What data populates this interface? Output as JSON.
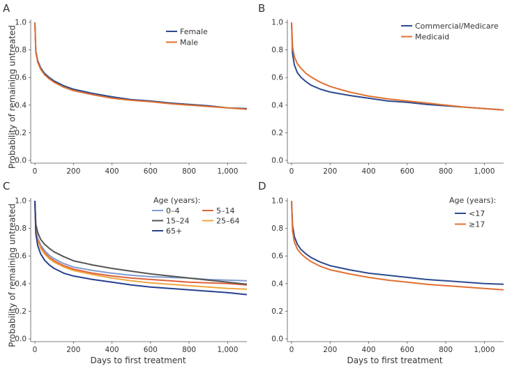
{
  "chart_data": [
    {
      "panel": "A",
      "type": "line",
      "xlabel": "",
      "ylabel": "Probability of remaining untreated",
      "xlim": [
        0,
        1100
      ],
      "ylim": [
        0,
        1.0
      ],
      "xticks": [
        0,
        200,
        400,
        600,
        800,
        1000
      ],
      "xtick_labels": [
        "0",
        "200",
        "400",
        "600",
        "800",
        "1,000"
      ],
      "yticks": [
        0,
        0.2,
        0.4,
        0.6,
        0.8,
        1.0
      ],
      "ytick_labels": [
        "0.0",
        "0.2",
        "0.4",
        "0.6",
        "0.8",
        "1.0"
      ],
      "legend_title": "",
      "legend_position": "top-right",
      "legend_columns": 1,
      "x": [
        0,
        5,
        15,
        30,
        50,
        75,
        100,
        150,
        200,
        300,
        400,
        500,
        600,
        700,
        800,
        900,
        1000,
        1100
      ],
      "series": [
        {
          "name": "Female",
          "color": "#2b4a8f",
          "values": [
            1.0,
            0.79,
            0.72,
            0.67,
            0.63,
            0.6,
            0.575,
            0.54,
            0.515,
            0.485,
            0.46,
            0.44,
            0.43,
            0.415,
            0.405,
            0.395,
            0.38,
            0.375
          ]
        },
        {
          "name": "Male",
          "color": "#e07030",
          "values": [
            1.0,
            0.78,
            0.71,
            0.66,
            0.62,
            0.59,
            0.565,
            0.53,
            0.505,
            0.475,
            0.45,
            0.435,
            0.425,
            0.41,
            0.4,
            0.39,
            0.38,
            0.37
          ]
        }
      ]
    },
    {
      "panel": "B",
      "type": "line",
      "xlabel": "",
      "ylabel": "",
      "xlim": [
        0,
        1100
      ],
      "ylim": [
        0,
        1.0
      ],
      "xticks": [
        0,
        200,
        400,
        600,
        800,
        1000
      ],
      "xtick_labels": [
        "0",
        "200",
        "400",
        "600",
        "800",
        "1,000"
      ],
      "yticks": [
        0,
        0.2,
        0.4,
        0.6,
        0.8,
        1.0
      ],
      "ytick_labels": [
        "0.0",
        "0.2",
        "0.4",
        "0.6",
        "0.8",
        "1.0"
      ],
      "legend_title": "",
      "legend_position": "top-right",
      "legend_columns": 1,
      "x": [
        0,
        5,
        15,
        30,
        50,
        75,
        100,
        150,
        200,
        300,
        400,
        500,
        600,
        700,
        800,
        900,
        1000,
        1100
      ],
      "series": [
        {
          "name": "Commercial/Medicare",
          "color": "#2b4a8f",
          "values": [
            1.0,
            0.77,
            0.69,
            0.635,
            0.6,
            0.57,
            0.545,
            0.515,
            0.495,
            0.47,
            0.45,
            0.43,
            0.42,
            0.405,
            0.395,
            0.385,
            0.375,
            0.365
          ]
        },
        {
          "name": "Medicaid",
          "color": "#e07030",
          "values": [
            1.0,
            0.82,
            0.75,
            0.7,
            0.665,
            0.63,
            0.605,
            0.565,
            0.535,
            0.495,
            0.465,
            0.445,
            0.43,
            0.415,
            0.4,
            0.385,
            0.375,
            0.365
          ]
        }
      ]
    },
    {
      "panel": "C",
      "type": "line",
      "xlabel": "Days to first treatment",
      "ylabel": "Probability of remaining untreated",
      "xlim": [
        0,
        1100
      ],
      "ylim": [
        0,
        1.0
      ],
      "xticks": [
        0,
        200,
        400,
        600,
        800,
        1000
      ],
      "xtick_labels": [
        "0",
        "200",
        "400",
        "600",
        "800",
        "1,000"
      ],
      "yticks": [
        0,
        0.2,
        0.4,
        0.6,
        0.8,
        1.0
      ],
      "ytick_labels": [
        "0.0",
        "0.2",
        "0.4",
        "0.6",
        "0.8",
        "1.0"
      ],
      "legend_title": "Age (years):",
      "legend_position": "top-right",
      "legend_columns": 2,
      "x": [
        0,
        5,
        15,
        30,
        50,
        75,
        100,
        150,
        200,
        300,
        400,
        500,
        600,
        700,
        800,
        900,
        1000,
        1100
      ],
      "series": [
        {
          "name": "0–4",
          "color": "#7f9bd1",
          "values": [
            1.0,
            0.8,
            0.73,
            0.68,
            0.64,
            0.605,
            0.58,
            0.545,
            0.52,
            0.495,
            0.475,
            0.46,
            0.45,
            0.445,
            0.44,
            0.43,
            0.425,
            0.42
          ]
        },
        {
          "name": "5–14",
          "color": "#e0613a",
          "values": [
            1.0,
            0.79,
            0.72,
            0.665,
            0.625,
            0.59,
            0.565,
            0.53,
            0.505,
            0.475,
            0.455,
            0.44,
            0.43,
            0.42,
            0.41,
            0.405,
            0.4,
            0.39
          ]
        },
        {
          "name": "15–24",
          "color": "#555555",
          "values": [
            1.0,
            0.83,
            0.77,
            0.72,
            0.685,
            0.655,
            0.63,
            0.595,
            0.565,
            0.535,
            0.51,
            0.49,
            0.47,
            0.455,
            0.44,
            0.425,
            0.41,
            0.395
          ]
        },
        {
          "name": "25–64",
          "color": "#efa640",
          "values": [
            1.0,
            0.79,
            0.71,
            0.655,
            0.615,
            0.58,
            0.555,
            0.52,
            0.495,
            0.465,
            0.44,
            0.42,
            0.405,
            0.395,
            0.385,
            0.375,
            0.365,
            0.36
          ]
        },
        {
          "name": "65+",
          "color": "#263f8e",
          "values": [
            1.0,
            0.76,
            0.675,
            0.615,
            0.57,
            0.535,
            0.51,
            0.475,
            0.455,
            0.43,
            0.41,
            0.39,
            0.375,
            0.365,
            0.355,
            0.345,
            0.335,
            0.32
          ]
        }
      ]
    },
    {
      "panel": "D",
      "type": "line",
      "xlabel": "Days to first treatment",
      "ylabel": "",
      "xlim": [
        0,
        1100
      ],
      "ylim": [
        0,
        1.0
      ],
      "xticks": [
        0,
        200,
        400,
        600,
        800,
        1000
      ],
      "xtick_labels": [
        "0",
        "200",
        "400",
        "600",
        "800",
        "1,000"
      ],
      "yticks": [
        0,
        0.2,
        0.4,
        0.6,
        0.8,
        1.0
      ],
      "ytick_labels": [
        "0.0",
        "0.2",
        "0.4",
        "0.6",
        "0.8",
        "1.0"
      ],
      "legend_title": "Age (years):",
      "legend_position": "top-right",
      "legend_columns": 1,
      "x": [
        0,
        5,
        15,
        30,
        50,
        75,
        100,
        150,
        200,
        300,
        400,
        500,
        600,
        700,
        800,
        900,
        1000,
        1100
      ],
      "series": [
        {
          "name": "<17",
          "color": "#2b4a8f",
          "values": [
            1.0,
            0.82,
            0.74,
            0.685,
            0.645,
            0.615,
            0.59,
            0.555,
            0.53,
            0.5,
            0.475,
            0.46,
            0.445,
            0.43,
            0.42,
            0.41,
            0.4,
            0.395
          ]
        },
        {
          "name": "≥17",
          "color": "#e07030",
          "values": [
            1.0,
            0.78,
            0.7,
            0.65,
            0.615,
            0.585,
            0.56,
            0.525,
            0.5,
            0.47,
            0.445,
            0.425,
            0.41,
            0.395,
            0.385,
            0.375,
            0.365,
            0.355
          ]
        }
      ]
    }
  ]
}
